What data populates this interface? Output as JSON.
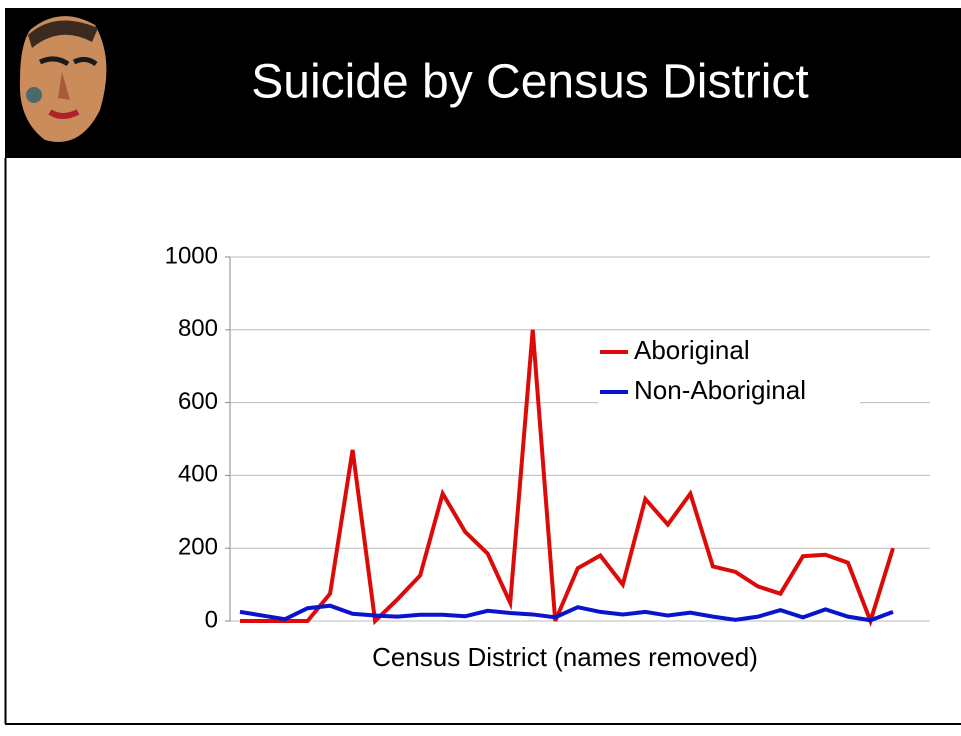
{
  "chart_data": {
    "type": "line",
    "title": "Suicide by Census District",
    "x_label": "Census District (names removed)",
    "categories": [
      null,
      null,
      null,
      null,
      null,
      null,
      null,
      null,
      null,
      null,
      null,
      null,
      null,
      null,
      null,
      null,
      null,
      null,
      null,
      null,
      null,
      null,
      null,
      null,
      null,
      null,
      null,
      null,
      null,
      null
    ],
    "series": [
      {
        "name": "Aboriginal",
        "color": "#dd0a0a",
        "values": [
          0,
          0,
          0,
          0,
          75,
          470,
          0,
          60,
          125,
          350,
          245,
          185,
          50,
          800,
          0,
          145,
          180,
          100,
          335,
          265,
          350,
          150,
          135,
          95,
          75,
          178,
          182,
          160,
          0,
          200
        ]
      },
      {
        "name": "Non-Aboriginal",
        "color": "#0a14cc",
        "values": [
          25,
          15,
          5,
          35,
          42,
          20,
          15,
          12,
          17,
          17,
          13,
          28,
          22,
          18,
          10,
          38,
          25,
          18,
          25,
          15,
          23,
          12,
          3,
          12,
          30,
          10,
          32,
          12,
          2,
          25
        ]
      }
    ],
    "ylim": [
      0,
      1000
    ],
    "yticks": [
      0,
      200,
      400,
      600,
      800,
      1000
    ],
    "grid": true,
    "legend": "upper right"
  }
}
